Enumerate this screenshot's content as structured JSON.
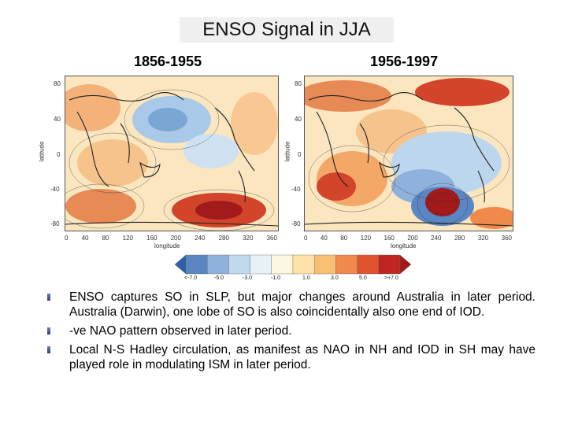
{
  "title": "ENSO Signal in JJA",
  "panels": [
    {
      "period": "1856-1955",
      "ylabel": "latitude",
      "xlabel": "longitude",
      "yticks": [
        "80",
        "40",
        "0",
        "-40",
        "-80"
      ],
      "xticks": [
        "0",
        "40",
        "80",
        "120",
        "160",
        "200",
        "240",
        "280",
        "320",
        "360"
      ]
    },
    {
      "period": "1956-1997",
      "ylabel": "latitude",
      "xlabel": "longitude",
      "yticks": [
        "80",
        "40",
        "0",
        "-40",
        "-80"
      ],
      "xticks": [
        "0",
        "40",
        "80",
        "120",
        "160",
        "200",
        "240",
        "280",
        "320",
        "360"
      ]
    }
  ],
  "colorbar": {
    "labels": [
      "<-7.0",
      "-5.0",
      "-3.0",
      "-1.0",
      "1.0",
      "3.0",
      "5.0",
      ">+7.0"
    ],
    "colors": [
      "#2f5ea8",
      "#5b86c4",
      "#8fb2dc",
      "#c1d9ee",
      "#e7f1f8",
      "#fbf6dc",
      "#fde3a8",
      "#f8bf73",
      "#f08a4b",
      "#e0532f",
      "#c02520",
      "#a31a1a"
    ]
  },
  "bullets": [
    "ENSO captures SO in SLP, but major changes around Australia in later period. Australia (Darwin), one lobe of SO is also coincidentally also one end of IOD.",
    "-ve NAO pattern observed in later period.",
    "Local N-S Hadley circulation, as manifest as NAO in NH and IOD in SH may have played role in modulating ISM in later period."
  ]
}
